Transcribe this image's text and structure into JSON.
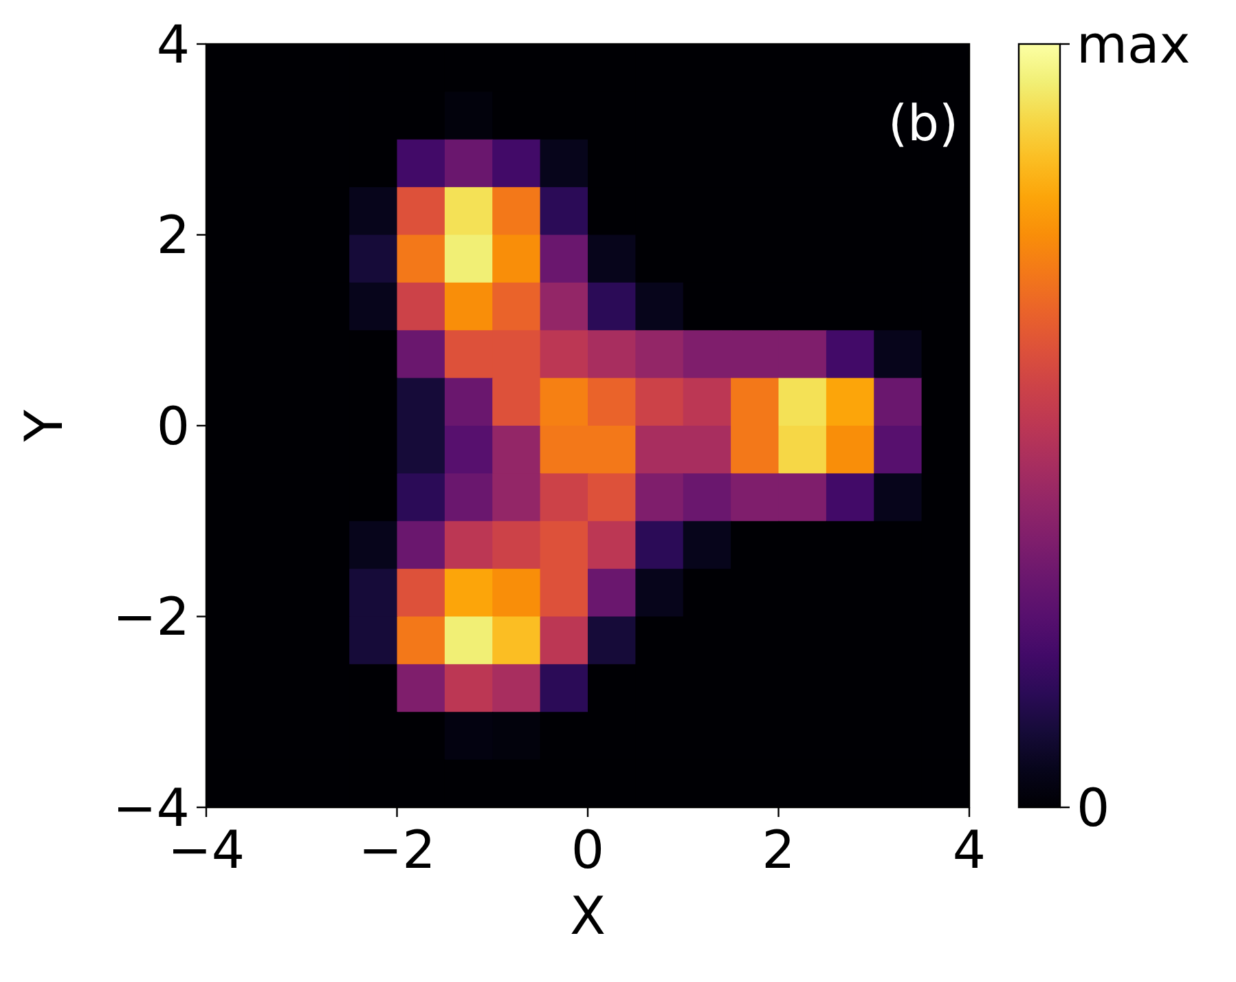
{
  "chart_data": {
    "type": "heatmap",
    "xlabel": "X",
    "ylabel": "Y",
    "annotations": [
      "(b)"
    ],
    "x": [
      -3.75,
      -3.25,
      -2.75,
      -2.25,
      -1.75,
      -1.25,
      -0.75,
      -0.25,
      0.25,
      0.75,
      1.25,
      1.75,
      2.25,
      2.75,
      3.25,
      3.75
    ],
    "y": [
      3.75,
      3.25,
      2.75,
      2.25,
      1.75,
      1.25,
      0.75,
      0.25,
      -0.25,
      -0.75,
      -1.25,
      -1.75,
      -2.25,
      -2.75,
      -3.25,
      -3.75
    ],
    "xlim": [
      -4,
      4
    ],
    "ylim": [
      -4,
      4
    ],
    "xticks": [
      {
        "value": -4,
        "label": "−4"
      },
      {
        "value": -2,
        "label": "−2"
      },
      0,
      2,
      4
    ],
    "yticks": [
      {
        "value": -4,
        "label": "−4"
      },
      {
        "value": -2,
        "label": "−2"
      },
      0,
      2,
      4
    ],
    "clim": [
      0,
      1
    ],
    "cticks": [
      0,
      {
        "value": 1,
        "label": "max"
      }
    ],
    "cells": [
      [
        0,
        0,
        0,
        0,
        0,
        0,
        0,
        0,
        0,
        0,
        0,
        0,
        0,
        0,
        0,
        0
      ],
      [
        0,
        0,
        0,
        0,
        0,
        0.02,
        0,
        0,
        0,
        0,
        0,
        0,
        0,
        0,
        0,
        0
      ],
      [
        0,
        0,
        0,
        0,
        0.2,
        0.3,
        0.2,
        0.05,
        0,
        0,
        0,
        0,
        0,
        0,
        0,
        0
      ],
      [
        0,
        0,
        0,
        0.05,
        0.6,
        0.92,
        0.7,
        0.15,
        0,
        0,
        0,
        0,
        0,
        0,
        0,
        0
      ],
      [
        0,
        0,
        0,
        0.1,
        0.7,
        0.95,
        0.75,
        0.3,
        0.05,
        0,
        0,
        0,
        0,
        0,
        0,
        0
      ],
      [
        0,
        0,
        0,
        0.05,
        0.55,
        0.75,
        0.65,
        0.4,
        0.15,
        0.05,
        0,
        0,
        0,
        0,
        0,
        0
      ],
      [
        0,
        0,
        0,
        0,
        0.3,
        0.6,
        0.6,
        0.5,
        0.45,
        0.4,
        0.35,
        0.35,
        0.35,
        0.2,
        0.05,
        0
      ],
      [
        0,
        0,
        0,
        0,
        0.1,
        0.3,
        0.6,
        0.72,
        0.65,
        0.55,
        0.5,
        0.7,
        0.92,
        0.8,
        0.3,
        0
      ],
      [
        0,
        0,
        0,
        0,
        0.1,
        0.25,
        0.4,
        0.7,
        0.7,
        0.45,
        0.45,
        0.7,
        0.9,
        0.75,
        0.25,
        0
      ],
      [
        0,
        0,
        0,
        0,
        0.15,
        0.3,
        0.4,
        0.55,
        0.6,
        0.35,
        0.3,
        0.35,
        0.35,
        0.2,
        0.05,
        0
      ],
      [
        0,
        0,
        0,
        0.05,
        0.3,
        0.5,
        0.55,
        0.6,
        0.5,
        0.15,
        0.05,
        0,
        0,
        0,
        0,
        0
      ],
      [
        0,
        0,
        0,
        0.1,
        0.6,
        0.8,
        0.75,
        0.6,
        0.3,
        0.05,
        0,
        0,
        0,
        0,
        0,
        0
      ],
      [
        0,
        0,
        0,
        0.1,
        0.7,
        0.95,
        0.85,
        0.5,
        0.1,
        0,
        0,
        0,
        0,
        0,
        0,
        0
      ],
      [
        0,
        0,
        0,
        0,
        0.35,
        0.5,
        0.45,
        0.15,
        0,
        0,
        0,
        0,
        0,
        0,
        0,
        0
      ],
      [
        0,
        0,
        0,
        0,
        0,
        0.03,
        0.02,
        0,
        0,
        0,
        0,
        0,
        0,
        0,
        0,
        0
      ],
      [
        0,
        0,
        0,
        0,
        0,
        0,
        0,
        0,
        0,
        0,
        0,
        0,
        0,
        0,
        0,
        0
      ]
    ]
  }
}
